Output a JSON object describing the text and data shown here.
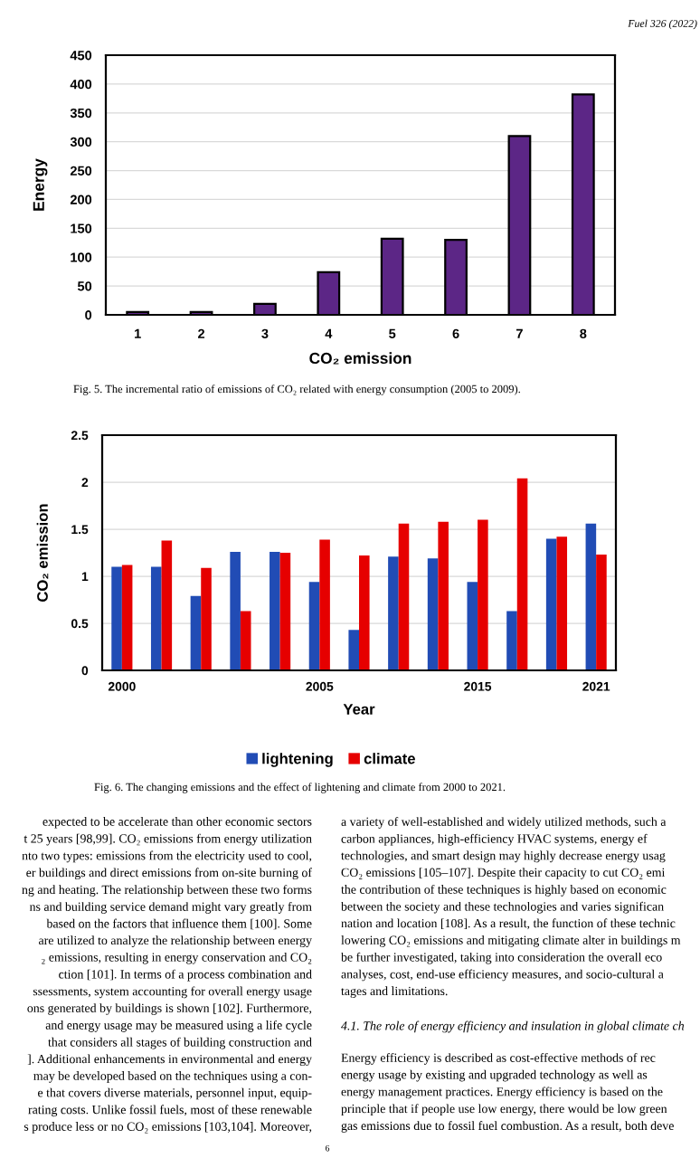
{
  "chart_data": [
    {
      "type": "bar",
      "categories": [
        "1",
        "2",
        "3",
        "4",
        "5",
        "6",
        "7",
        "8"
      ],
      "values": [
        5,
        5,
        19,
        74,
        132,
        130,
        310,
        382
      ],
      "color": "#5c2686",
      "ylim": [
        0,
        450
      ],
      "yticks": [
        0,
        50,
        100,
        150,
        200,
        250,
        300,
        350,
        400,
        450
      ],
      "grid": "y",
      "xlabel": "CO₂ emission",
      "ylabel": "Energy",
      "annotations": [
        "Fuel 326 (2022)",
        "Fig. 5. The incremental ratio of emissions of CO₂ related with energy consumption (2005 to 2009)."
      ]
    },
    {
      "type": "bar",
      "categories": [
        "2000",
        null,
        null,
        null,
        null,
        "2005",
        null,
        null,
        null,
        "2015",
        null,
        null,
        "2021"
      ],
      "series": [
        {
          "name": "lightening",
          "color": "#214cb5",
          "values": [
            1.1,
            1.1,
            0.79,
            1.26,
            1.26,
            0.94,
            0.43,
            1.21,
            1.19,
            0.94,
            0.63,
            1.4,
            1.56
          ]
        },
        {
          "name": "climate",
          "color": "#e60000",
          "values": [
            1.12,
            1.38,
            1.09,
            0.63,
            1.25,
            1.39,
            1.22,
            1.56,
            1.58,
            1.6,
            2.04,
            1.42,
            1.23
          ]
        }
      ],
      "ylim": [
        0,
        2.5
      ],
      "yticks": [
        0,
        0.5,
        1,
        1.5,
        2,
        2.5
      ],
      "grid": "y",
      "legend": "bottom",
      "xlabel": "Year",
      "ylabel": "CO₂ emission",
      "annotations": [
        "Fig. 6. The changing emissions and the effect of lightening and climate from 2000 to 2021.",
        "expected to be accelerate than other economic sectors\nt 25 years [98,99]. CO₂ emissions from energy utilization\nnto two types: emissions from the electricity used to cool,\ner buildings and direct emissions from on-site burning of\nng and heating. The relationship between these two forms\nns and building service demand might vary greatly from\nbased on the factors that influence them [100]. Some\nare utilized to analyze the relationship between energy\n₂ emissions, resulting in energy conservation and CO₂\nction [101]. In terms of a process combination and\nssessments, system accounting for overall energy usage\nons generated by buildings is shown [102]. Furthermore,\nand energy usage may be measured using a life cycle\nthat considers all stages of building construction and\n]. Additional enhancements in environmental and energy\nmay be developed based on the techniques using a con-\ne that covers diverse materials, personnel input, equip-\nrating costs. Unlike fossil fuels, most of these renewable\ns produce less or no CO₂ emissions [103,104]. Moreover,",
        "a variety of well-established and widely utilized methods, such a\ncarbon appliances, high-efficiency HVAC systems, energy ef\ntechnologies, and smart design may highly decrease energy usag\nCO₂ emissions [105–107]. Despite their capacity to cut CO₂ emi\nthe contribution of these techniques is highly based on economic\nbetween the society and these technologies and varies significan\nnation and location [108]. As a result, the function of these technic\nlowering CO₂ emissions and mitigating climate alter in buildings m\nbe further investigated, taking into consideration the overall eco\nanalyses, cost, end-use efficiency measures, and socio-cultural a\ntages and limitations.",
        "4.1. The role of energy efficiency and insulation in global climate ch",
        "Energy efficiency is described as cost-effective methods of rec\nenergy usage by existing and upgraded technology as well as\nenergy management practices. Energy efficiency is based on the\nprinciple that if people use low energy, there would be low green\ngas emissions due to fossil fuel combustion. As a result, both deve",
        "6"
      ]
    }
  ]
}
